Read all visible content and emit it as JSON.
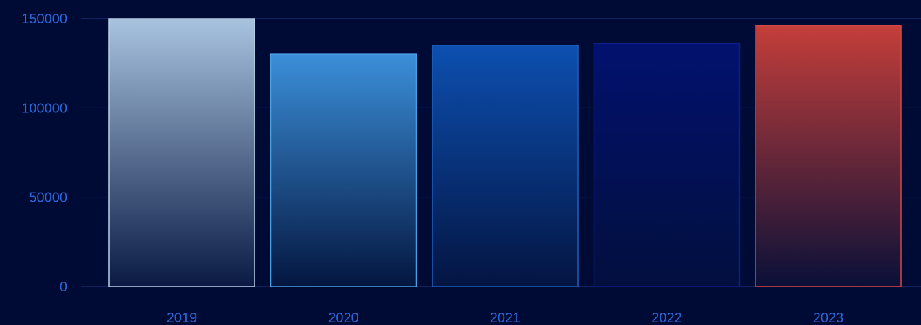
{
  "chart_data": {
    "type": "bar",
    "categories": [
      "2019",
      "2020",
      "2021",
      "2022",
      "2023"
    ],
    "values": [
      150000,
      130000,
      135000,
      136000,
      146000
    ],
    "ylim": [
      0,
      150000
    ],
    "yticks": [
      0,
      50000,
      100000,
      150000
    ],
    "ytick_labels": [
      "0",
      "50000",
      "100000",
      "150000"
    ],
    "grid": true,
    "title": "",
    "xlabel": "",
    "ylabel": "",
    "colors": {
      "background": "#000b35",
      "axis_text": "#2a66d6",
      "gridline": "#1a3a86",
      "bars": [
        {
          "top": "#a8c3df",
          "bottom": "#0a1a44",
          "edge": "#b9cfe6"
        },
        {
          "top": "#3b8fd9",
          "bottom": "#041640",
          "edge": "#4aa0e6"
        },
        {
          "top": "#0d4fb0",
          "bottom": "#031542",
          "edge": "#1c5fc0"
        },
        {
          "top": "#02116e",
          "bottom": "#020f3e",
          "edge": "#0b1f8a"
        },
        {
          "top": "#c43e3a",
          "bottom": "#0a1038",
          "edge": "#d24a44"
        }
      ]
    }
  }
}
